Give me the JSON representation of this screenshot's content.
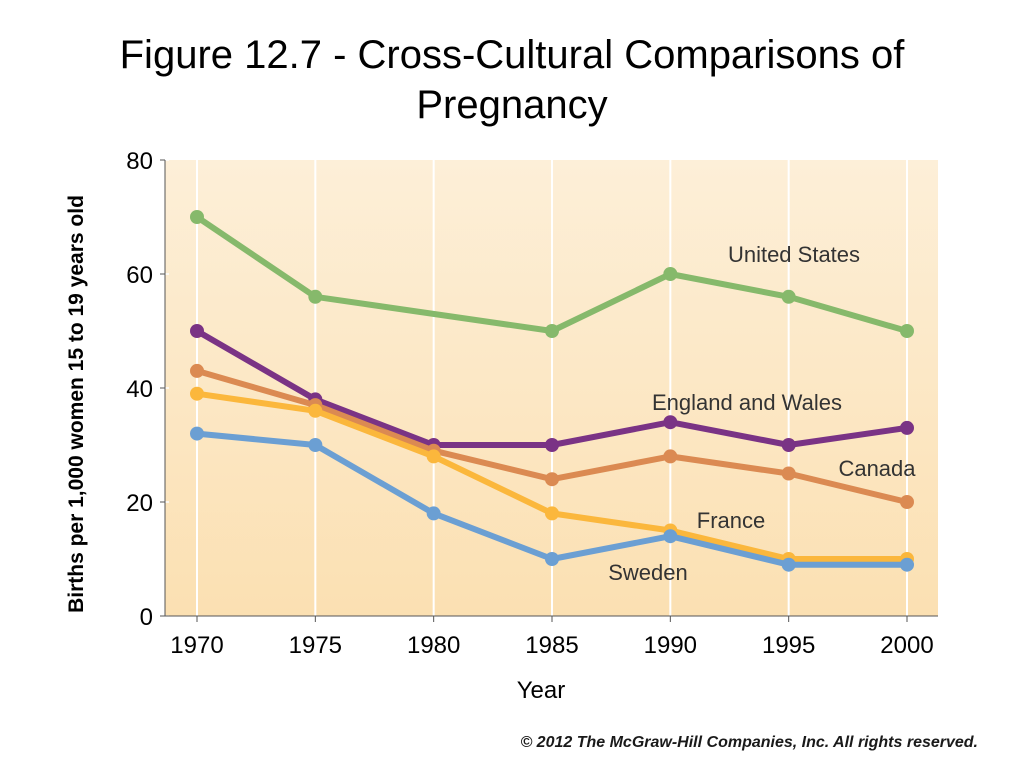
{
  "slide": {
    "title_line1": "Figure 12.7 - Cross-Cultural Comparisons of",
    "title_line2": "Pregnancy",
    "copyright": "© 2012 The McGraw-Hill Companies, Inc. All rights reserved."
  },
  "chart_data": {
    "type": "line",
    "title": "",
    "xlabel": "Year",
    "ylabel": "Births per 1,000 women 15 to 19 years old",
    "x": [
      1970,
      1975,
      1980,
      1985,
      1990,
      1995,
      2000
    ],
    "xlim": [
      1970,
      2000
    ],
    "ylim": [
      0,
      80
    ],
    "yticks": [
      0,
      20,
      40,
      60,
      80
    ],
    "grid": "vertical",
    "background": "#fbe4bd",
    "series": [
      {
        "name": "United States",
        "color": "#86b96b",
        "values": [
          70,
          56,
          null,
          50,
          60,
          56,
          50
        ],
        "label_placement": "above"
      },
      {
        "name": "England and Wales",
        "color": "#7a3385",
        "values": [
          50,
          38,
          30,
          30,
          34,
          30,
          33
        ],
        "label_placement": "above"
      },
      {
        "name": "Canada",
        "color": "#db8a52",
        "values": [
          43,
          37,
          29,
          24,
          28,
          25,
          20
        ],
        "label_placement": "above"
      },
      {
        "name": "France",
        "color": "#fbb73c",
        "values": [
          39,
          36,
          28,
          18,
          15,
          10,
          10
        ],
        "label_placement": "above"
      },
      {
        "name": "Sweden",
        "color": "#6b9fd3",
        "values": [
          32,
          30,
          18,
          10,
          14,
          9,
          9
        ],
        "label_placement": "below"
      }
    ]
  }
}
